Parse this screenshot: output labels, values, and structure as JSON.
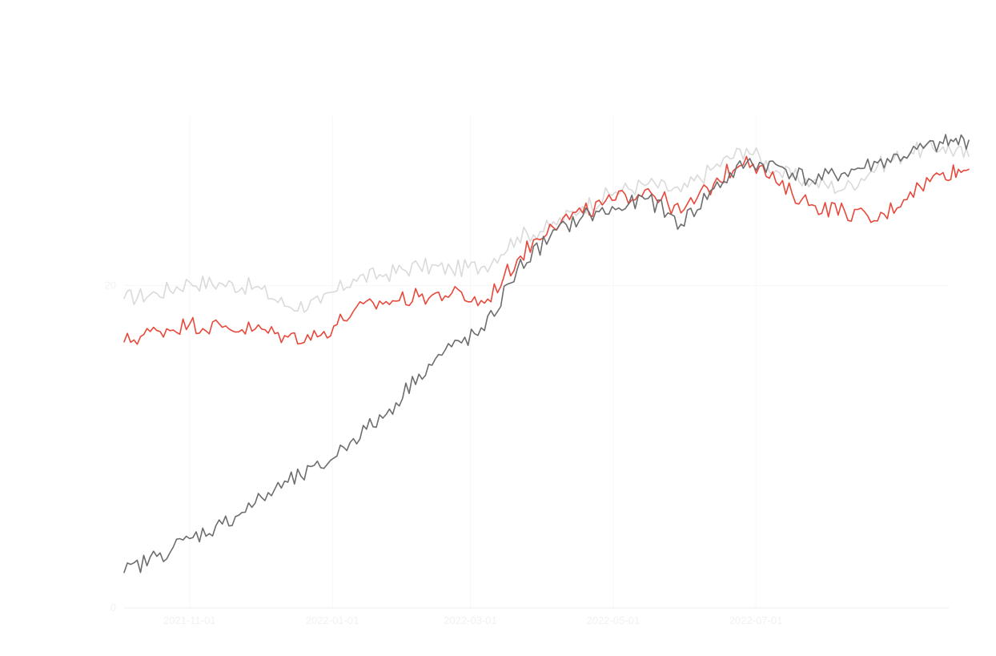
{
  "chart_data": {
    "type": "line",
    "title": "",
    "xlabel": "",
    "ylabel": "",
    "x_start": "2021-10-04",
    "x_end": "2022-09-30",
    "xlim": [
      "2021-10-04",
      "2022-09-30"
    ],
    "ylim": [
      0,
      30.5
    ],
    "y_ticks": [
      {
        "value": 0,
        "label": "0"
      },
      {
        "value": 20,
        "label": "20"
      }
    ],
    "x_ticks": [
      {
        "date": "2021-11-01",
        "label": "2021-11-01"
      },
      {
        "date": "2022-01-01",
        "label": "2022-01-01"
      },
      {
        "date": "2022-03-01",
        "label": "2022-03-01"
      },
      {
        "date": "2022-05-01",
        "label": "2022-05-01"
      },
      {
        "date": "2022-07-01",
        "label": "2022-07-01"
      }
    ],
    "grid": true,
    "series": [
      {
        "color": "#dadada",
        "points": [
          [
            "2021-10-04",
            19.2
          ],
          [
            "2021-10-18",
            19.5
          ],
          [
            "2021-11-01",
            20.2
          ],
          [
            "2021-11-15",
            20.1
          ],
          [
            "2021-11-29",
            19.9
          ],
          [
            "2021-12-13",
            18.7
          ],
          [
            "2021-12-27",
            18.9
          ],
          [
            "2022-01-10",
            20.4
          ],
          [
            "2022-01-24",
            20.7
          ],
          [
            "2022-02-07",
            21.2
          ],
          [
            "2022-02-21",
            21.0
          ],
          [
            "2022-03-07",
            21.2
          ],
          [
            "2022-03-21",
            23.0
          ],
          [
            "2022-04-04",
            23.6
          ],
          [
            "2022-04-18",
            24.9
          ],
          [
            "2022-05-02",
            25.8
          ],
          [
            "2022-05-16",
            26.3
          ],
          [
            "2022-05-30",
            25.8
          ],
          [
            "2022-06-13",
            27.3
          ],
          [
            "2022-06-27",
            28.5
          ],
          [
            "2022-07-11",
            27.0
          ],
          [
            "2022-07-25",
            26.4
          ],
          [
            "2022-08-08",
            26.0
          ],
          [
            "2022-08-22",
            27.4
          ],
          [
            "2022-09-05",
            28.3
          ],
          [
            "2022-09-19",
            28.6
          ],
          [
            "2022-09-30",
            28.0
          ]
        ]
      },
      {
        "color": "#e8483b",
        "points": [
          [
            "2021-10-04",
            16.5
          ],
          [
            "2021-10-18",
            17.2
          ],
          [
            "2021-11-01",
            17.6
          ],
          [
            "2021-11-15",
            17.4
          ],
          [
            "2021-11-29",
            17.3
          ],
          [
            "2021-12-13",
            16.8
          ],
          [
            "2021-12-27",
            16.9
          ],
          [
            "2022-01-10",
            18.4
          ],
          [
            "2022-01-24",
            19.0
          ],
          [
            "2022-02-07",
            19.3
          ],
          [
            "2022-02-21",
            19.5
          ],
          [
            "2022-03-07",
            18.9
          ],
          [
            "2022-03-21",
            21.6
          ],
          [
            "2022-04-04",
            23.8
          ],
          [
            "2022-04-18",
            24.5
          ],
          [
            "2022-05-02",
            25.3
          ],
          [
            "2022-05-16",
            26.0
          ],
          [
            "2022-05-30",
            24.5
          ],
          [
            "2022-06-13",
            26.3
          ],
          [
            "2022-06-27",
            28.0
          ],
          [
            "2022-07-11",
            26.2
          ],
          [
            "2022-07-25",
            25.0
          ],
          [
            "2022-08-08",
            24.6
          ],
          [
            "2022-08-22",
            24.0
          ],
          [
            "2022-09-05",
            25.8
          ],
          [
            "2022-09-19",
            27.0
          ],
          [
            "2022-09-30",
            27.2
          ]
        ]
      },
      {
        "color": "#6d6d6d",
        "points": [
          [
            "2021-10-04",
            2.2
          ],
          [
            "2021-10-18",
            3.2
          ],
          [
            "2021-11-01",
            4.3
          ],
          [
            "2021-11-15",
            5.2
          ],
          [
            "2021-11-29",
            6.5
          ],
          [
            "2021-12-13",
            7.8
          ],
          [
            "2021-12-27",
            8.7
          ],
          [
            "2022-01-10",
            10.5
          ],
          [
            "2022-01-24",
            12.0
          ],
          [
            "2022-02-07",
            14.5
          ],
          [
            "2022-02-21",
            16.2
          ],
          [
            "2022-03-07",
            17.2
          ],
          [
            "2022-03-21",
            21.0
          ],
          [
            "2022-04-04",
            23.0
          ],
          [
            "2022-04-18",
            24.3
          ],
          [
            "2022-05-02",
            24.7
          ],
          [
            "2022-05-16",
            25.4
          ],
          [
            "2022-05-30",
            23.8
          ],
          [
            "2022-06-13",
            26.0
          ],
          [
            "2022-06-27",
            27.6
          ],
          [
            "2022-07-11",
            27.4
          ],
          [
            "2022-07-25",
            26.5
          ],
          [
            "2022-08-08",
            27.0
          ],
          [
            "2022-08-22",
            27.6
          ],
          [
            "2022-09-05",
            28.2
          ],
          [
            "2022-09-19",
            28.8
          ],
          [
            "2022-09-30",
            29.0
          ]
        ]
      }
    ]
  }
}
